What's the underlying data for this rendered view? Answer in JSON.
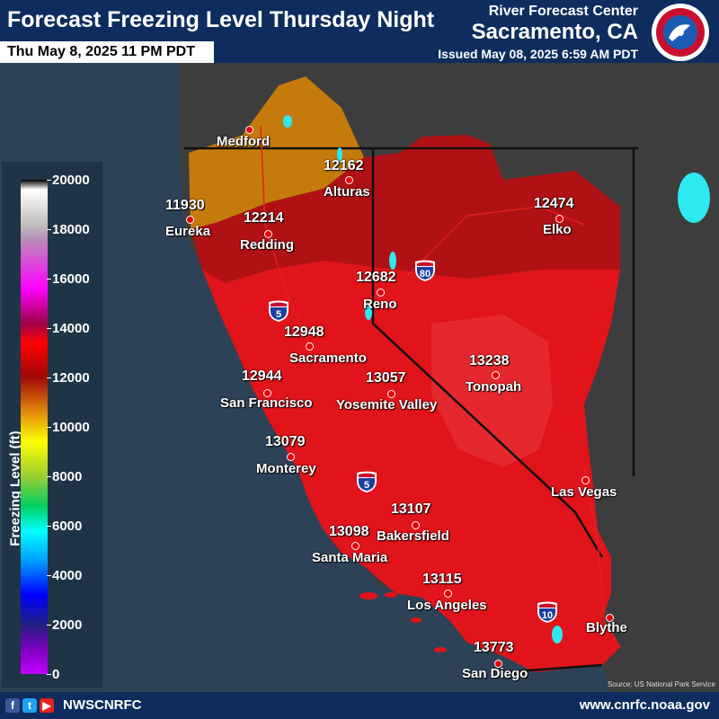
{
  "header": {
    "title": "Forecast Freezing Level Thursday Night",
    "valid_time": "Thu May 8, 2025 11 PM PDT",
    "office_line1": "River Forecast Center",
    "office_line2": "Sacramento, CA",
    "issued": "Issued May 08, 2025 6:59 AM PDT"
  },
  "legend": {
    "title": "Freezing Level (ft)",
    "ticks": [
      "20000",
      "18000",
      "16000",
      "14000",
      "12000",
      "10000",
      "8000",
      "6000",
      "4000",
      "2000",
      "0"
    ]
  },
  "cities": [
    {
      "name": "Medford",
      "value": ""
    },
    {
      "name": "Eureka",
      "value": "11930"
    },
    {
      "name": "Alturas",
      "value": "12162"
    },
    {
      "name": "Redding",
      "value": "12214"
    },
    {
      "name": "Elko",
      "value": "12474"
    },
    {
      "name": "Reno",
      "value": "12682"
    },
    {
      "name": "Sacramento",
      "value": "12948"
    },
    {
      "name": "San Francisco",
      "value": "12944"
    },
    {
      "name": "Yosemite Valley",
      "value": "13057"
    },
    {
      "name": "Tonopah",
      "value": "13238"
    },
    {
      "name": "Monterey",
      "value": "13079"
    },
    {
      "name": "Las Vegas",
      "value": ""
    },
    {
      "name": "Bakersfield",
      "value": "13107"
    },
    {
      "name": "Santa Maria",
      "value": "13098"
    },
    {
      "name": "Los Angeles",
      "value": "13115"
    },
    {
      "name": "Blythe",
      "value": ""
    },
    {
      "name": "San Diego",
      "value": "13773"
    }
  ],
  "highways": [
    "80",
    "5",
    "5",
    "10"
  ],
  "footer": {
    "social_handle": "NWSCNRFC",
    "website": "www.cnrfc.noaa.gov",
    "source": "Source: US National Park Service"
  },
  "colors": {
    "header_bg": "#0e2d5e",
    "ocean": "#2d4256",
    "land": "#3c3c3c",
    "zone_dark_red": "#b40f12",
    "zone_red": "#e11017",
    "zone_orange": "#c8790a",
    "water": "#2ee8f0"
  }
}
